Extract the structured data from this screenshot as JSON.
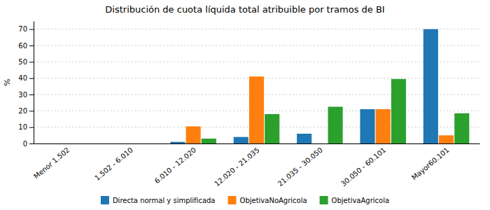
{
  "chart_data": {
    "type": "bar",
    "title": "Distribución de cuota líquida total atribuible por tramos de BI",
    "categories": [
      "Menor 1.502",
      "1.502 - 6.010",
      "6.010 - 12.020",
      "12.020 - 21.035",
      "21.035 - 30.050",
      "30.050 - 60.101",
      "Mayor60.101"
    ],
    "series": [
      {
        "name": "Directa normal y simplificada",
        "values": [
          0,
          0,
          1,
          4,
          6,
          21,
          70
        ]
      },
      {
        "name": "ObjetivaNoAgricola",
        "values": [
          0,
          0,
          10.5,
          41,
          0,
          21,
          5
        ]
      },
      {
        "name": "ObjetivaAgricola",
        "values": [
          0,
          0,
          3,
          18,
          22.5,
          39.5,
          18.5
        ]
      }
    ],
    "ylabel": "%",
    "ylim": [
      0,
      75
    ],
    "yticks": [
      0,
      10,
      20,
      30,
      40,
      50,
      60,
      70
    ],
    "grid": true,
    "legend": "bottom"
  }
}
